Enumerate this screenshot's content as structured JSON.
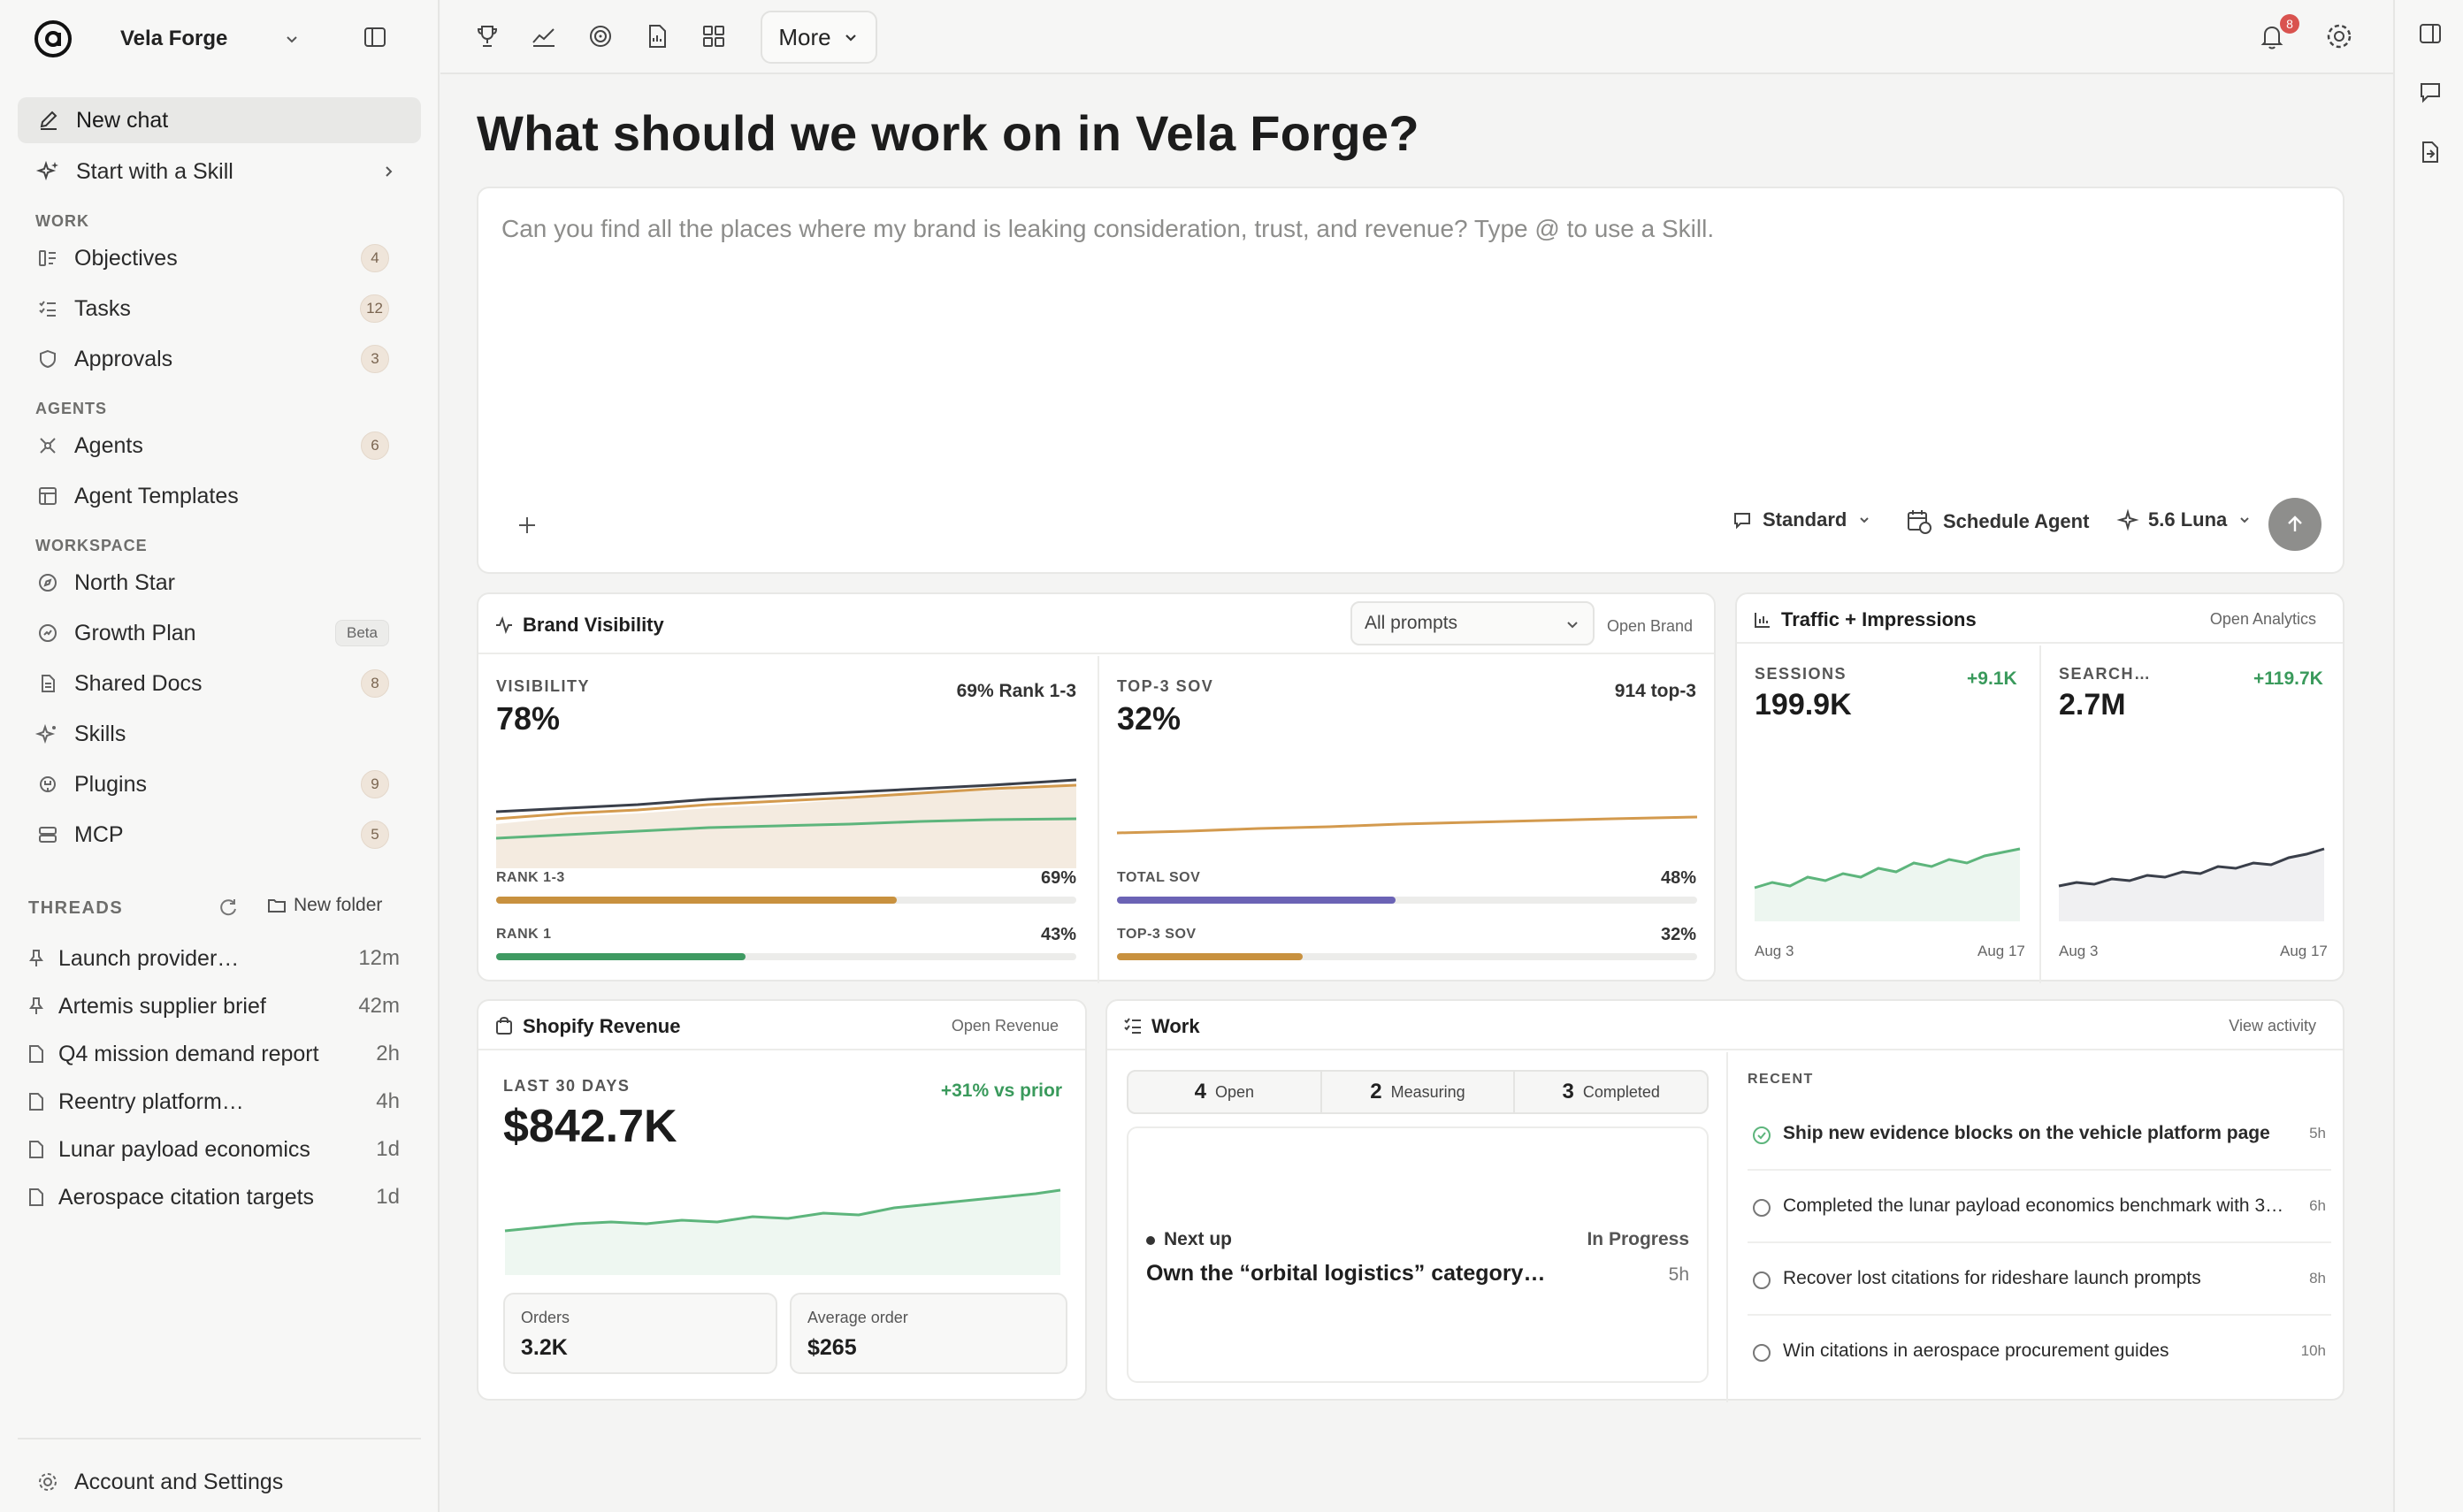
{
  "sidebar": {
    "workspace": "Vela Forge",
    "new_chat": "New chat",
    "start_skill": "Start with a Skill",
    "sections": {
      "work": "WORK",
      "agents": "AGENTS",
      "workspace": "WORKSPACE",
      "threads": "THREADS"
    },
    "work_items": [
      {
        "label": "Objectives",
        "badge": "4"
      },
      {
        "label": "Tasks",
        "badge": "12"
      },
      {
        "label": "Approvals",
        "badge": "3"
      }
    ],
    "agent_items": [
      {
        "label": "Agents",
        "badge": "6"
      },
      {
        "label": "Agent Templates",
        "badge": ""
      }
    ],
    "workspace_items": [
      {
        "label": "North Star",
        "badge": ""
      },
      {
        "label": "Growth Plan",
        "badge": "Beta"
      },
      {
        "label": "Shared Docs",
        "badge": "8"
      },
      {
        "label": "Skills",
        "badge": ""
      },
      {
        "label": "Plugins",
        "badge": "9"
      },
      {
        "label": "MCP",
        "badge": "5"
      }
    ],
    "new_folder": "New folder",
    "threads": [
      {
        "title": "Launch provider…",
        "time": "12m",
        "icon": "pin"
      },
      {
        "title": "Artemis supplier brief",
        "time": "42m",
        "icon": "pin"
      },
      {
        "title": "Q4 mission demand report",
        "time": "2h",
        "icon": "doc"
      },
      {
        "title": "Reentry platform…",
        "time": "4h",
        "icon": "doc"
      },
      {
        "title": "Lunar payload economics",
        "time": "1d",
        "icon": "doc"
      },
      {
        "title": "Aerospace citation targets",
        "time": "1d",
        "icon": "doc"
      }
    ],
    "account": "Account and Settings"
  },
  "topbar": {
    "more": "More",
    "notifications": "8"
  },
  "main": {
    "title": "What should we work on in Vela Forge?",
    "composer_placeholder": "Can you find all the places where my brand is leaking consideration, trust, and revenue? Type @ to use a Skill.",
    "mode": "Standard",
    "schedule": "Schedule Agent",
    "model": "5.6 Luna"
  },
  "brand": {
    "title": "Brand Visibility",
    "filter": "All prompts",
    "open": "Open Brand",
    "visibility": {
      "kicker": "VISIBILITY",
      "value": "78%",
      "right": "69% Rank 1-3",
      "bars": [
        {
          "label": "RANK 1-3",
          "value": "69%",
          "pct": 0.69,
          "color": "#c8913f"
        },
        {
          "label": "RANK 1",
          "value": "43%",
          "pct": 0.43,
          "color": "#3f9a62"
        }
      ]
    },
    "sov": {
      "kicker": "TOP-3 SOV",
      "value": "32%",
      "right": "914 top-3",
      "bars": [
        {
          "label": "TOTAL SOV",
          "value": "48%",
          "pct": 0.48,
          "color": "#6b63b5"
        },
        {
          "label": "TOP-3 SOV",
          "value": "32%",
          "pct": 0.32,
          "color": "#c8913f"
        }
      ]
    },
    "colors": {
      "dark": "#3a3f4a",
      "orange": "#d39a4e",
      "green": "#5db57c"
    }
  },
  "traffic": {
    "title": "Traffic + Impressions",
    "open": "Open Analytics",
    "sessions": {
      "kicker": "SESSIONS",
      "value": "199.9K",
      "delta": "+9.1K",
      "start": "Aug 3",
      "end": "Aug 17"
    },
    "search": {
      "kicker": "SEARCH…",
      "value": "2.7M",
      "delta": "+119.7K",
      "start": "Aug 3",
      "end": "Aug 17"
    }
  },
  "revenue": {
    "title": "Shopify Revenue",
    "open": "Open Revenue",
    "kicker": "LAST 30 DAYS",
    "value": "$842.7K",
    "delta": "+31% vs prior",
    "orders_label": "Orders",
    "orders": "3.2K",
    "aov_label": "Average order",
    "aov": "$265"
  },
  "work": {
    "title": "Work",
    "open": "View activity",
    "segments": [
      {
        "n": "4",
        "label": "Open"
      },
      {
        "n": "2",
        "label": "Measuring"
      },
      {
        "n": "3",
        "label": "Completed"
      }
    ],
    "next_label": "Next up",
    "next_status": "In Progress",
    "next_title": "Own the “orbital logistics” category…",
    "next_time": "5h",
    "recent_label": "RECENT",
    "recent": [
      {
        "title": "Ship new evidence blocks on the vehicle platform page",
        "time": "5h",
        "done": true
      },
      {
        "title": "Completed the lunar payload economics benchmark with 3…",
        "time": "6h",
        "done": false
      },
      {
        "title": "Recover lost citations for rideshare launch prompts",
        "time": "8h",
        "done": false
      },
      {
        "title": "Win citations in aerospace procurement guides",
        "time": "10h",
        "done": false
      }
    ]
  }
}
